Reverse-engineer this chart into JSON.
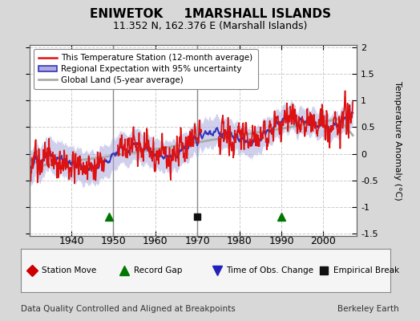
{
  "title": "ENIWETOK     1MARSHALL ISLANDS",
  "subtitle": "11.352 N, 162.376 E (Marshall Islands)",
  "ylabel": "Temperature Anomaly (°C)",
  "xlabel_footer": "Data Quality Controlled and Aligned at Breakpoints",
  "footer_right": "Berkeley Earth",
  "ylim": [
    -1.55,
    2.05
  ],
  "xlim": [
    1930,
    2008
  ],
  "yticks": [
    -1.5,
    -1.0,
    -0.5,
    0.0,
    0.5,
    1.0,
    1.5,
    2.0
  ],
  "xticks": [
    1940,
    1950,
    1960,
    1970,
    1980,
    1990,
    2000
  ],
  "bg_color": "#d8d8d8",
  "plot_bg_color": "#ffffff",
  "grid_color": "#cccccc",
  "legend_line_color": "#cc0000",
  "legend_band_color": "#aaaadd",
  "legend_band_edge": "#4444bb",
  "legend_gray_color": "#999999",
  "blue_line_color": "#3333bb",
  "red_line_color": "#dd1111",
  "gray_line_color": "#aaaaaa",
  "band_fill_color": "#aaaadd",
  "band_alpha": 0.55,
  "seed": 123,
  "vline_color": "#888888",
  "vline_lw": 1.0
}
